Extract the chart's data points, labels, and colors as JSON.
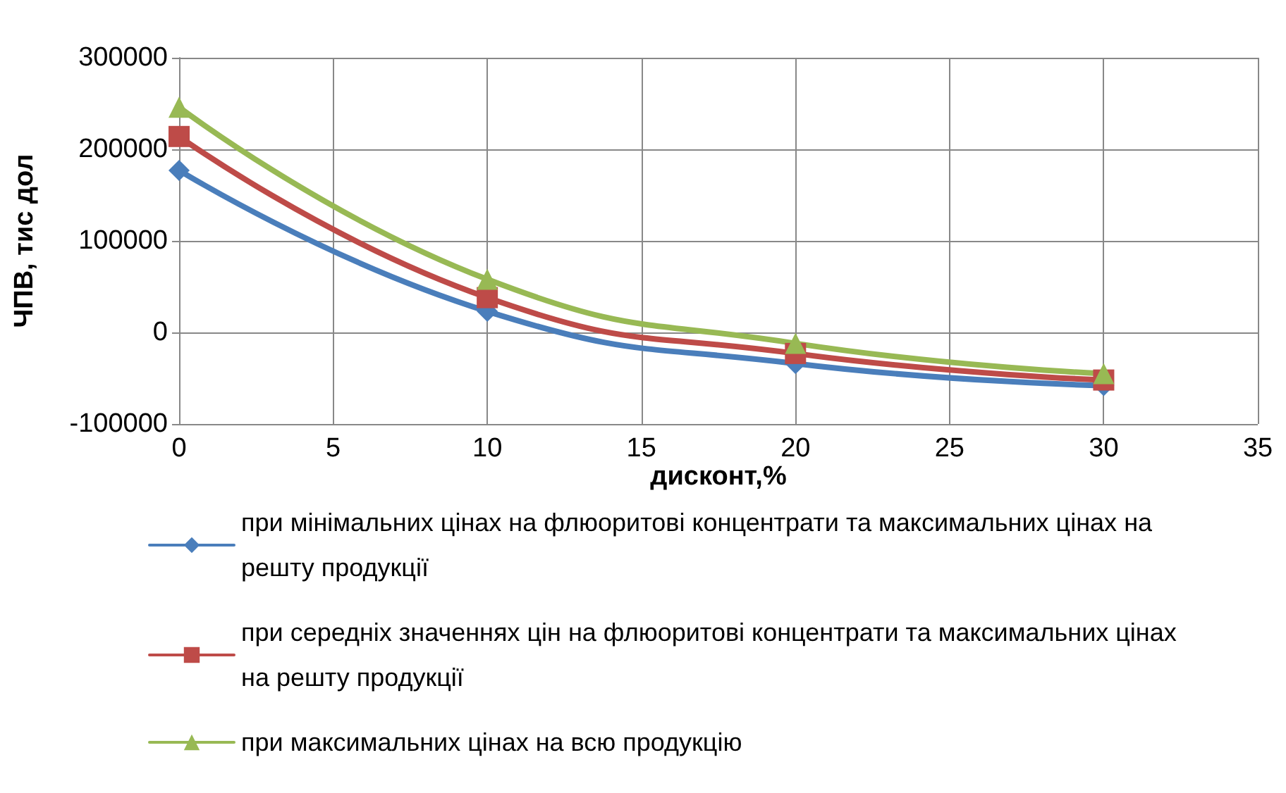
{
  "chart_data": {
    "type": "line",
    "xlabel": "дисконт,%",
    "ylabel": "ЧПВ, тис дол",
    "x": [
      0,
      10,
      20,
      30
    ],
    "xlim": [
      0,
      35
    ],
    "xticks": [
      0,
      5,
      10,
      15,
      20,
      25,
      30,
      35
    ],
    "ylim": [
      -100000,
      300000
    ],
    "yticks": [
      -100000,
      0,
      100000,
      200000,
      300000
    ],
    "grid": true,
    "legend": "bottom",
    "series": [
      {
        "name": "при мінімальних цінах на флюоритові концентрати та максимальних цінах на решту продукції",
        "color": "#4a7ebb",
        "marker": "diamond",
        "values": [
          177000,
          23000,
          -34000,
          -58000
        ]
      },
      {
        "name": "при середніх значеннях цін на флюоритові концентрати та максимальних цінах на решту продукції",
        "color": "#be4b48",
        "marker": "square",
        "values": [
          214000,
          38000,
          -23000,
          -52000
        ]
      },
      {
        "name": "при максимальних цінах на всю продукцію",
        "color": "#98b954",
        "marker": "triangle",
        "values": [
          246000,
          58000,
          -12000,
          -45000
        ]
      }
    ]
  }
}
